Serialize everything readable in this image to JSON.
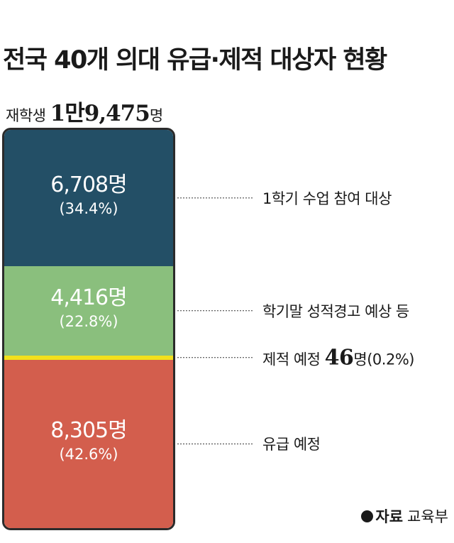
{
  "title": "전국 40개 의대 유급·제적 대상자 현황",
  "total": {
    "prefix": "재학생",
    "number": "1만9,475",
    "unit": "명"
  },
  "source": {
    "label": "자료",
    "value": "교육부"
  },
  "colors": {
    "navy": "#234f66",
    "green": "#8abf7d",
    "yellow": "#f2e01d",
    "red": "#d35e4d",
    "border": "#2b2b2b"
  },
  "chart_data": {
    "type": "bar",
    "stacked": true,
    "title": "전국 40개 의대 유급·제적 대상자 현황",
    "total": 19475,
    "segments": [
      {
        "name": "1학기 수업 참여 대상",
        "value": 6708,
        "value_label": "6,708명",
        "percent": 34.4,
        "percent_label": "(34.4%)",
        "color": "#234f66"
      },
      {
        "name": "학기말 성적경고 예상 등",
        "value": 4416,
        "value_label": "4,416명",
        "percent": 22.8,
        "percent_label": "(22.8%)",
        "color": "#8abf7d"
      },
      {
        "name": "제적 예정",
        "value": 46,
        "value_label": "46",
        "unit": "명",
        "percent": 0.2,
        "percent_label": "(0.2%)",
        "color": "#f2e01d"
      },
      {
        "name": "유급 예정",
        "value": 8305,
        "value_label": "8,305명",
        "percent": 42.6,
        "percent_label": "(42.6%)",
        "color": "#d35e4d"
      }
    ]
  }
}
